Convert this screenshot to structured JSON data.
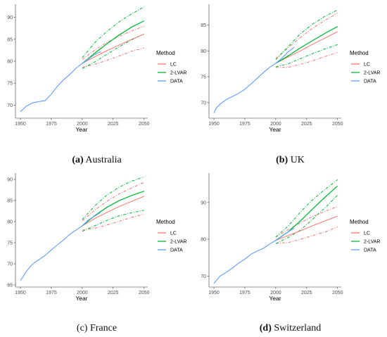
{
  "figure": {
    "legend_title": "Method",
    "legend_entries": [
      {
        "label": "LC",
        "color": "#F8766D"
      },
      {
        "label": "2-LVAR",
        "color": "#00BA38"
      },
      {
        "label": "DATA",
        "color": "#619CFF"
      }
    ]
  },
  "panels": [
    {
      "caption_tag": "(a)",
      "caption_text": " Australia",
      "caption_tag_bold": true
    },
    {
      "caption_tag": "(b)",
      "caption_text": " UK",
      "caption_tag_bold": true
    },
    {
      "caption_tag": "(c)",
      "caption_text": " France",
      "caption_tag_bold": false
    },
    {
      "caption_tag": "(d)",
      "caption_text": " Switzerland",
      "caption_tag_bold": true
    }
  ],
  "chart_data": [
    {
      "type": "line",
      "title": "",
      "xlabel": "Year",
      "ylabel": "",
      "xlim": [
        1946,
        2053
      ],
      "ylim": [
        67,
        93
      ],
      "xticks": [
        1950,
        1975,
        2000,
        2025,
        2050
      ],
      "yticks": [
        70,
        75,
        80,
        85,
        90
      ],
      "grid": false,
      "legend_position": "right",
      "x_hist": [
        1950,
        1955,
        1960,
        1965,
        1970,
        1975,
        1980,
        1985,
        1990,
        1995,
        2000,
        2005,
        2010,
        2015
      ],
      "data": [
        68.5,
        69.8,
        70.5,
        70.8,
        71.0,
        72.5,
        74.3,
        75.8,
        77.0,
        78.4,
        79.5,
        80.5,
        81.5,
        82.2
      ],
      "x_fc": [
        2000,
        2010,
        2020,
        2030,
        2040,
        2050
      ],
      "lc": {
        "mean": [
          79.5,
          81.0,
          82.4,
          83.7,
          85.0,
          86.2
        ],
        "upper": [
          80.4,
          82.5,
          84.3,
          85.7,
          86.9,
          88.0
        ],
        "lower": [
          78.6,
          79.3,
          80.2,
          81.2,
          82.3,
          83.0
        ]
      },
      "lvar": {
        "mean": [
          79.5,
          81.8,
          84.0,
          86.0,
          87.8,
          89.2
        ],
        "upper": [
          80.8,
          84.2,
          86.8,
          89.0,
          90.8,
          92.4
        ],
        "lower": [
          78.3,
          79.8,
          81.6,
          83.3,
          84.9,
          86.2
        ]
      }
    },
    {
      "type": "line",
      "title": "",
      "xlabel": "Year",
      "ylabel": "",
      "xlim": [
        1946,
        2053
      ],
      "ylim": [
        67,
        89
      ],
      "xticks": [
        1950,
        1975,
        2000,
        2025,
        2050
      ],
      "yticks": [
        70,
        75,
        80,
        85
      ],
      "grid": false,
      "legend_position": "right",
      "x_hist": [
        1950,
        1952,
        1955,
        1960,
        1965,
        1970,
        1975,
        1980,
        1985,
        1990,
        1995,
        2000,
        2005,
        2010,
        2015
      ],
      "data": [
        68.0,
        69.0,
        69.7,
        70.6,
        71.2,
        71.8,
        72.6,
        73.6,
        74.7,
        75.8,
        76.8,
        77.6,
        78.6,
        79.8,
        80.7
      ],
      "x_fc": [
        2000,
        2010,
        2020,
        2030,
        2040,
        2050
      ],
      "lc": {
        "mean": [
          77.6,
          78.8,
          80.0,
          81.3,
          82.5,
          83.7
        ],
        "upper": [
          78.5,
          80.6,
          82.6,
          84.4,
          85.9,
          87.3
        ],
        "lower": [
          76.8,
          76.8,
          77.4,
          78.1,
          78.9,
          79.7
        ]
      },
      "lvar": {
        "mean": [
          77.6,
          79.0,
          80.6,
          82.0,
          83.4,
          84.7
        ],
        "upper": [
          78.3,
          80.8,
          83.3,
          85.2,
          86.7,
          87.9
        ],
        "lower": [
          76.9,
          77.5,
          78.5,
          79.5,
          80.4,
          81.2
        ]
      }
    },
    {
      "type": "line",
      "title": "",
      "xlabel": "Year",
      "ylabel": "",
      "xlim": [
        1946,
        2053
      ],
      "ylim": [
        64.5,
        91.5
      ],
      "xticks": [
        1950,
        1975,
        2000,
        2025,
        2050
      ],
      "yticks": [
        65,
        70,
        75,
        80,
        85,
        90
      ],
      "grid": false,
      "legend_position": "right",
      "x_hist": [
        1950,
        1955,
        1960,
        1965,
        1970,
        1975,
        1980,
        1985,
        1990,
        1995,
        2000,
        2005,
        2010,
        2015
      ],
      "data": [
        66.0,
        68.3,
        70.0,
        71.0,
        72.0,
        73.3,
        74.5,
        75.7,
        77.0,
        78.0,
        79.0,
        80.4,
        81.3,
        82.2
      ],
      "x_fc": [
        2000,
        2010,
        2020,
        2030,
        2040,
        2050
      ],
      "lc": {
        "mean": [
          79.0,
          80.7,
          82.2,
          83.6,
          84.8,
          86.0
        ],
        "upper": [
          80.2,
          82.7,
          84.8,
          86.6,
          88.0,
          89.3
        ],
        "lower": [
          78.0,
          78.4,
          79.2,
          80.1,
          81.0,
          81.8
        ]
      },
      "lvar": {
        "mean": [
          79.0,
          81.4,
          83.4,
          85.0,
          86.2,
          87.2
        ],
        "upper": [
          80.5,
          83.7,
          86.3,
          88.2,
          89.6,
          90.6
        ],
        "lower": [
          77.7,
          79.0,
          80.3,
          81.4,
          82.1,
          82.7
        ]
      }
    },
    {
      "type": "line",
      "title": "",
      "xlabel": "Year",
      "ylabel": "",
      "xlim": [
        1946,
        2053
      ],
      "ylim": [
        67,
        98
      ],
      "xticks": [
        1950,
        1975,
        2000,
        2025,
        2050
      ],
      "yticks": [
        70,
        80,
        90
      ],
      "grid": false,
      "legend_position": "right",
      "x_hist": [
        1950,
        1955,
        1960,
        1965,
        1970,
        1975,
        1980,
        1985,
        1990,
        1995,
        2000,
        2005,
        2010,
        2015
      ],
      "data": [
        68.0,
        70.0,
        71.0,
        72.2,
        73.5,
        74.6,
        75.9,
        76.8,
        77.5,
        78.7,
        79.7,
        80.8,
        82.0,
        83.0
      ],
      "x_fc": [
        2000,
        2010,
        2020,
        2030,
        2040,
        2050
      ],
      "lc": {
        "mean": [
          79.7,
          81.0,
          82.3,
          83.7,
          85.0,
          86.3
        ],
        "upper": [
          80.6,
          82.6,
          84.5,
          86.2,
          87.6,
          88.9
        ],
        "lower": [
          78.9,
          79.1,
          80.0,
          81.0,
          82.0,
          83.4
        ]
      },
      "lvar": {
        "mean": [
          79.7,
          82.0,
          85.0,
          88.3,
          91.5,
          94.5
        ],
        "upper": [
          80.6,
          83.6,
          87.4,
          90.8,
          93.6,
          96.2
        ],
        "lower": [
          78.8,
          80.5,
          82.5,
          85.5,
          88.6,
          92.0
        ]
      }
    }
  ]
}
